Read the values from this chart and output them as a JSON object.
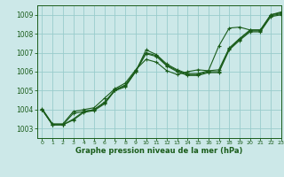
{
  "xlabel": "Graphe pression niveau de la mer (hPa)",
  "xlim": [
    -0.5,
    23
  ],
  "ylim": [
    1002.5,
    1009.5
  ],
  "yticks": [
    1003,
    1004,
    1005,
    1006,
    1007,
    1008,
    1009
  ],
  "xticks": [
    0,
    1,
    2,
    3,
    4,
    5,
    6,
    7,
    8,
    9,
    10,
    11,
    12,
    13,
    14,
    15,
    16,
    17,
    18,
    19,
    20,
    21,
    22,
    23
  ],
  "bg_color": "#cce8e8",
  "grid_color": "#99cccc",
  "line_color": "#1a5c1a",
  "series": [
    [
      1004.0,
      1003.2,
      1003.2,
      1003.8,
      1003.9,
      1004.0,
      1004.4,
      1005.0,
      1005.2,
      1006.0,
      1007.15,
      1006.9,
      1006.4,
      1006.1,
      1005.9,
      1005.9,
      1006.05,
      1006.1,
      1007.25,
      1007.75,
      1008.2,
      1008.2,
      1009.0,
      1009.1
    ],
    [
      1004.0,
      1003.2,
      1003.2,
      1003.5,
      1003.9,
      1004.0,
      1004.35,
      1005.05,
      1005.3,
      1006.05,
      1007.0,
      1006.85,
      1006.35,
      1006.05,
      1005.85,
      1005.85,
      1006.0,
      1006.0,
      1007.2,
      1007.7,
      1008.15,
      1008.15,
      1008.95,
      1009.05
    ],
    [
      1004.0,
      1003.2,
      1003.2,
      1003.45,
      1003.85,
      1003.95,
      1004.3,
      1005.0,
      1005.25,
      1006.0,
      1006.95,
      1006.8,
      1006.3,
      1006.0,
      1005.8,
      1005.8,
      1005.95,
      1005.95,
      1007.15,
      1007.65,
      1008.1,
      1008.1,
      1008.9,
      1009.0
    ],
    [
      1004.05,
      1003.25,
      1003.25,
      1003.9,
      1004.0,
      1004.1,
      1004.6,
      1005.1,
      1005.4,
      1006.1,
      1006.65,
      1006.5,
      1006.05,
      1005.85,
      1006.0,
      1006.1,
      1006.05,
      1007.35,
      1008.3,
      1008.35,
      1008.2,
      1008.2,
      1009.0,
      1009.15
    ]
  ],
  "xlabel_fontsize": 6.0,
  "ytick_fontsize": 5.5,
  "xtick_fontsize": 4.5
}
